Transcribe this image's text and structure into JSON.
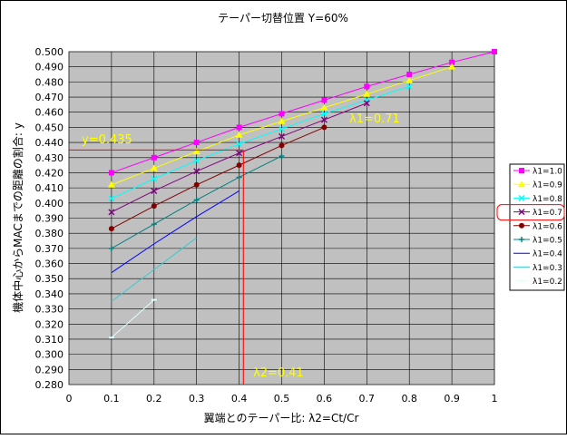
{
  "chart_data": {
    "type": "line",
    "title": "テーパー切替位置 Y=60%",
    "xlabel": "翼端とのテーパー比: λ2=Ct/Cr",
    "ylabel": "機体中心からMACまでの距離の割合: y",
    "xlim": [
      0,
      1
    ],
    "ylim": [
      0.28,
      0.5
    ],
    "x_ticks": [
      "0",
      "0.1",
      "0.2",
      "0.3",
      "0.4",
      "0.5",
      "0.6",
      "0.7",
      "0.8",
      "0.9",
      "1"
    ],
    "y_ticks": [
      "0.280",
      "0.290",
      "0.300",
      "0.310",
      "0.320",
      "0.330",
      "0.340",
      "0.350",
      "0.360",
      "0.370",
      "0.380",
      "0.390",
      "0.400",
      "0.410",
      "0.420",
      "0.430",
      "0.440",
      "0.450",
      "0.460",
      "0.470",
      "0.480",
      "0.490",
      "0.500"
    ],
    "grid": true,
    "legend_position": "right",
    "series": [
      {
        "name": "λ1=1.0",
        "color": "#ff00ff",
        "marker": "square",
        "x": [
          0.1,
          0.2,
          0.3,
          0.4,
          0.5,
          0.6,
          0.7,
          0.8,
          0.9,
          1.0
        ],
        "y": [
          0.42,
          0.43,
          0.44,
          0.45,
          0.459,
          0.468,
          0.477,
          0.485,
          0.493,
          0.5
        ]
      },
      {
        "name": "λ1=0.9",
        "color": "#ffff00",
        "marker": "triangle",
        "x": [
          0.1,
          0.2,
          0.3,
          0.4,
          0.5,
          0.6,
          0.7,
          0.8,
          0.9
        ],
        "y": [
          0.412,
          0.423,
          0.434,
          0.445,
          0.454,
          0.463,
          0.472,
          0.481,
          0.49
        ]
      },
      {
        "name": "λ1=0.8",
        "color": "#00ffff",
        "marker": "x",
        "x": [
          0.1,
          0.2,
          0.3,
          0.4,
          0.5,
          0.6,
          0.7,
          0.8
        ],
        "y": [
          0.403,
          0.416,
          0.428,
          0.439,
          0.449,
          0.459,
          0.468,
          0.477
        ]
      },
      {
        "name": "λ1=0.7",
        "color": "#800080",
        "marker": "x",
        "x": [
          0.1,
          0.2,
          0.3,
          0.4,
          0.5,
          0.6,
          0.7
        ],
        "y": [
          0.394,
          0.408,
          0.421,
          0.433,
          0.444,
          0.455,
          0.466
        ]
      },
      {
        "name": "λ1=0.6",
        "color": "#800000",
        "marker": "circle",
        "x": [
          0.1,
          0.2,
          0.3,
          0.4,
          0.5,
          0.6
        ],
        "y": [
          0.383,
          0.398,
          0.412,
          0.425,
          0.438,
          0.45
        ]
      },
      {
        "name": "λ1=0.5",
        "color": "#008080",
        "marker": "plus",
        "x": [
          0.1,
          0.2,
          0.3,
          0.4,
          0.5
        ],
        "y": [
          0.37,
          0.386,
          0.402,
          0.417,
          0.431
        ]
      },
      {
        "name": "λ1=0.4",
        "color": "#0000ff",
        "marker": "none",
        "x": [
          0.1,
          0.2,
          0.3,
          0.4
        ],
        "y": [
          0.354,
          0.373,
          0.391,
          0.408
        ]
      },
      {
        "name": "λ1=0.3",
        "color": "#33cccc",
        "marker": "none",
        "x": [
          0.1,
          0.2,
          0.3
        ],
        "y": [
          0.335,
          0.356,
          0.377
        ]
      },
      {
        "name": "λ1=0.2",
        "color": "#e0ffff",
        "marker": "dash",
        "x": [
          0.1,
          0.2
        ],
        "y": [
          0.311,
          0.336
        ]
      }
    ],
    "annotations": [
      {
        "text": "y=0.435",
        "color": "#ffff00"
      },
      {
        "text": "λ1=0.71",
        "color": "#ffff00"
      },
      {
        "text": "λ2=0.41",
        "color": "#ffff00"
      }
    ],
    "reference_lines": [
      {
        "axis": "y",
        "value": 0.435,
        "color": "#ff0000"
      },
      {
        "axis": "x",
        "value": 0.41,
        "color": "#ff0000"
      }
    ],
    "highlight_legend_item": "λ1=0.7"
  }
}
